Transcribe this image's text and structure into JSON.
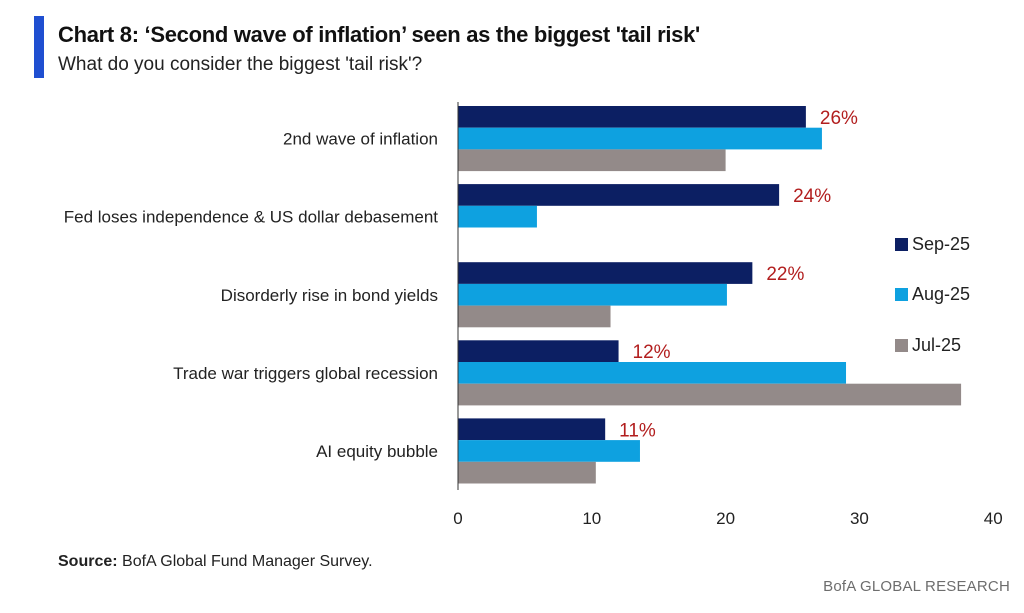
{
  "header": {
    "title": "Chart 8: ‘Second wave of inflation’ seen as the biggest 'tail risk'",
    "subtitle": "What do you consider the biggest 'tail risk'?"
  },
  "footer": {
    "source_label": "Source:",
    "source_text": " BofA Global Fund Manager Survey.",
    "brand": "BofA GLOBAL RESEARCH"
  },
  "colors": {
    "accent": "#1f4fd1",
    "sep": "#0c1f63",
    "aug": "#0ea1e0",
    "jul": "#938a89",
    "data_label": "#b21e1e"
  },
  "chart_data": {
    "type": "bar",
    "orientation": "horizontal",
    "categories": [
      "2nd wave of inflation",
      "Fed loses independence & US dollar debasement",
      "Disorderly rise in bond yields",
      "Trade war triggers global recession",
      "AI equity bubble"
    ],
    "series": [
      {
        "name": "Sep-25",
        "values": [
          26,
          24,
          22,
          12,
          11
        ]
      },
      {
        "name": "Aug-25",
        "values": [
          27.2,
          5.9,
          20.1,
          29,
          13.6
        ]
      },
      {
        "name": "Jul-25",
        "values": [
          20,
          null,
          11.4,
          37.6,
          10.3
        ]
      }
    ],
    "data_labels": [
      "26%",
      "24%",
      "22%",
      "12%",
      "11%"
    ],
    "xlim": [
      0,
      40
    ],
    "xticks": [
      0,
      10,
      20,
      30,
      40
    ],
    "legend_position": "right",
    "grid": false
  }
}
